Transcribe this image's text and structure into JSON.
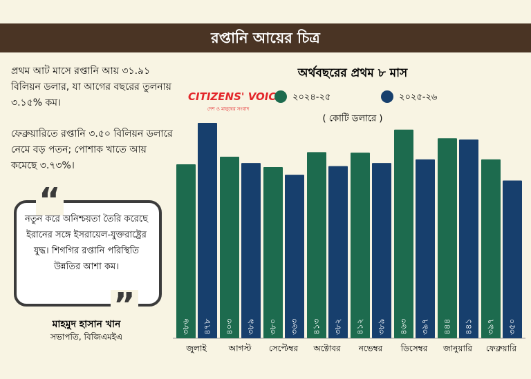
{
  "header": {
    "title": "রপ্তানি আয়ের চিত্র"
  },
  "summary": [
    "প্রথম আট মাসে রপ্তানি আয় ৩১.৯১ বিলিয়ন ডলার, যা আগের বছরের তুলনায় ৩.১৫% কম।",
    "ফেব্রুয়ারিতে রপ্তানি ৩.৫০ বিলিয়ন ডলারে নেমে বড় পতন; পোশাক খাতে আয় কমেছে ৩.৭৩%।"
  ],
  "quote": {
    "text": "নতুন করে অনিশ্চয়তা তৈরি করেছে ইরানের সঙ্গে ইসরায়েল-যুক্তরাষ্ট্রের যুদ্ধ। শিগগির রপ্তানি পরিস্থিতি উন্নতির আশা কম।",
    "name": "মাহমুদ হাসান খান",
    "role": "সভাপতি, বিজিএমইএ"
  },
  "logo": {
    "name": "CITIZENS' VOICE",
    "tagline": "দেশ ও মানুষের সংবাদ"
  },
  "chart_data": {
    "type": "bar",
    "title": "অর্থবছরের প্রথম ৮ মাস",
    "unit": "( কোটি ডলারে )",
    "categories": [
      "জুলাই",
      "আগস্ট",
      "সেপ্টেম্বর",
      "অক্টোবর",
      "নভেম্বর",
      "ডিসেম্বর",
      "জানুয়ারি",
      "ফেব্রুয়ারি"
    ],
    "series": [
      {
        "name": "২০২৪-২৫",
        "color": "#1d6b4e",
        "values": [
          386,
          403,
          380,
          413,
          412,
          463,
          444,
          397
        ],
        "value_labels": [
          "৩৮৬",
          "৪০৩",
          "৩৮০",
          "৪১৩",
          "৪১২",
          "৪৬৩",
          "৪৪৪",
          "৩৯৭"
        ]
      },
      {
        "name": "২০২৫-২৬",
        "color": "#173f6d",
        "values": [
          478,
          389,
          363,
          382,
          389,
          397,
          441,
          350
        ],
        "value_labels": [
          "৪৭৮",
          "৩৮৯",
          "৩৬৩",
          "৩৮২",
          "৩৮৯",
          "৩৯৭",
          "৪৪১",
          "৩৫০"
        ]
      }
    ]
  }
}
